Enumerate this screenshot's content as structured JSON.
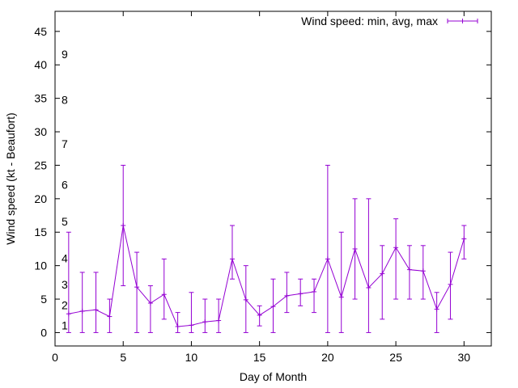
{
  "chart_data": {
    "type": "line",
    "title": "",
    "xlabel": "Day of Month",
    "ylabel": "Wind speed (kt - Beaufort)",
    "xlim": [
      0,
      32
    ],
    "ylim": [
      -2,
      48
    ],
    "xticks": [
      0,
      5,
      10,
      15,
      20,
      25,
      30
    ],
    "yticks": [
      0,
      5,
      10,
      15,
      20,
      25,
      30,
      35,
      40,
      45
    ],
    "grid": false,
    "legend_position": "top-right",
    "series": [
      {
        "name": "Wind speed: min, avg, max",
        "color": "#9400d3",
        "style": "yerrorlines",
        "points": [
          {
            "x": 1,
            "y": 2.8,
            "min": 0,
            "max": 15
          },
          {
            "x": 2,
            "y": 3.2,
            "min": 0,
            "max": 9
          },
          {
            "x": 3,
            "y": 3.4,
            "min": 0,
            "max": 9
          },
          {
            "x": 4,
            "y": 2.4,
            "min": 0,
            "max": 5
          },
          {
            "x": 5,
            "y": 16,
            "min": 7,
            "max": 25
          },
          {
            "x": 6,
            "y": 6.8,
            "min": 0,
            "max": 12
          },
          {
            "x": 7,
            "y": 4.4,
            "min": 0,
            "max": 7
          },
          {
            "x": 8,
            "y": 5.7,
            "min": 2,
            "max": 11
          },
          {
            "x": 9,
            "y": 0.9,
            "min": 0,
            "max": 3
          },
          {
            "x": 10,
            "y": 1.1,
            "min": 0,
            "max": 6
          },
          {
            "x": 11,
            "y": 1.6,
            "min": 0,
            "max": 5
          },
          {
            "x": 12,
            "y": 1.8,
            "min": 0,
            "max": 5
          },
          {
            "x": 13,
            "y": 11,
            "min": 8,
            "max": 16
          },
          {
            "x": 14,
            "y": 4.9,
            "min": 0,
            "max": 10
          },
          {
            "x": 15,
            "y": 2.6,
            "min": 1,
            "max": 4
          },
          {
            "x": 16,
            "y": 3.9,
            "min": 0,
            "max": 8
          },
          {
            "x": 17,
            "y": 5.5,
            "min": 3,
            "max": 9
          },
          {
            "x": 18,
            "y": 5.8,
            "min": 4,
            "max": 8
          },
          {
            "x": 19,
            "y": 6.1,
            "min": 3,
            "max": 8
          },
          {
            "x": 20,
            "y": 11,
            "min": 0,
            "max": 25
          },
          {
            "x": 21,
            "y": 5.3,
            "min": 0,
            "max": 15
          },
          {
            "x": 22,
            "y": 12.5,
            "min": 5,
            "max": 20
          },
          {
            "x": 23,
            "y": 6.7,
            "min": 0,
            "max": 20
          },
          {
            "x": 24,
            "y": 8.8,
            "min": 2,
            "max": 13
          },
          {
            "x": 25,
            "y": 12.7,
            "min": 5,
            "max": 17
          },
          {
            "x": 26,
            "y": 9.4,
            "min": 5,
            "max": 13
          },
          {
            "x": 27,
            "y": 9.2,
            "min": 5,
            "max": 13
          },
          {
            "x": 28,
            "y": 3.5,
            "min": 0,
            "max": 6
          },
          {
            "x": 29,
            "y": 7.2,
            "min": 2,
            "max": 12
          },
          {
            "x": 30,
            "y": 14,
            "min": 11,
            "max": 16
          }
        ]
      }
    ],
    "beaufort_labels": [
      {
        "label": "1",
        "y": 1.1
      },
      {
        "label": "2",
        "y": 4.1
      },
      {
        "label": "3",
        "y": 7.2
      },
      {
        "label": "4",
        "y": 11.1
      },
      {
        "label": "5",
        "y": 16.6
      },
      {
        "label": "6",
        "y": 22.1
      },
      {
        "label": "7",
        "y": 28.2
      },
      {
        "label": "8",
        "y": 34.8
      },
      {
        "label": "9",
        "y": 41.6
      }
    ]
  }
}
